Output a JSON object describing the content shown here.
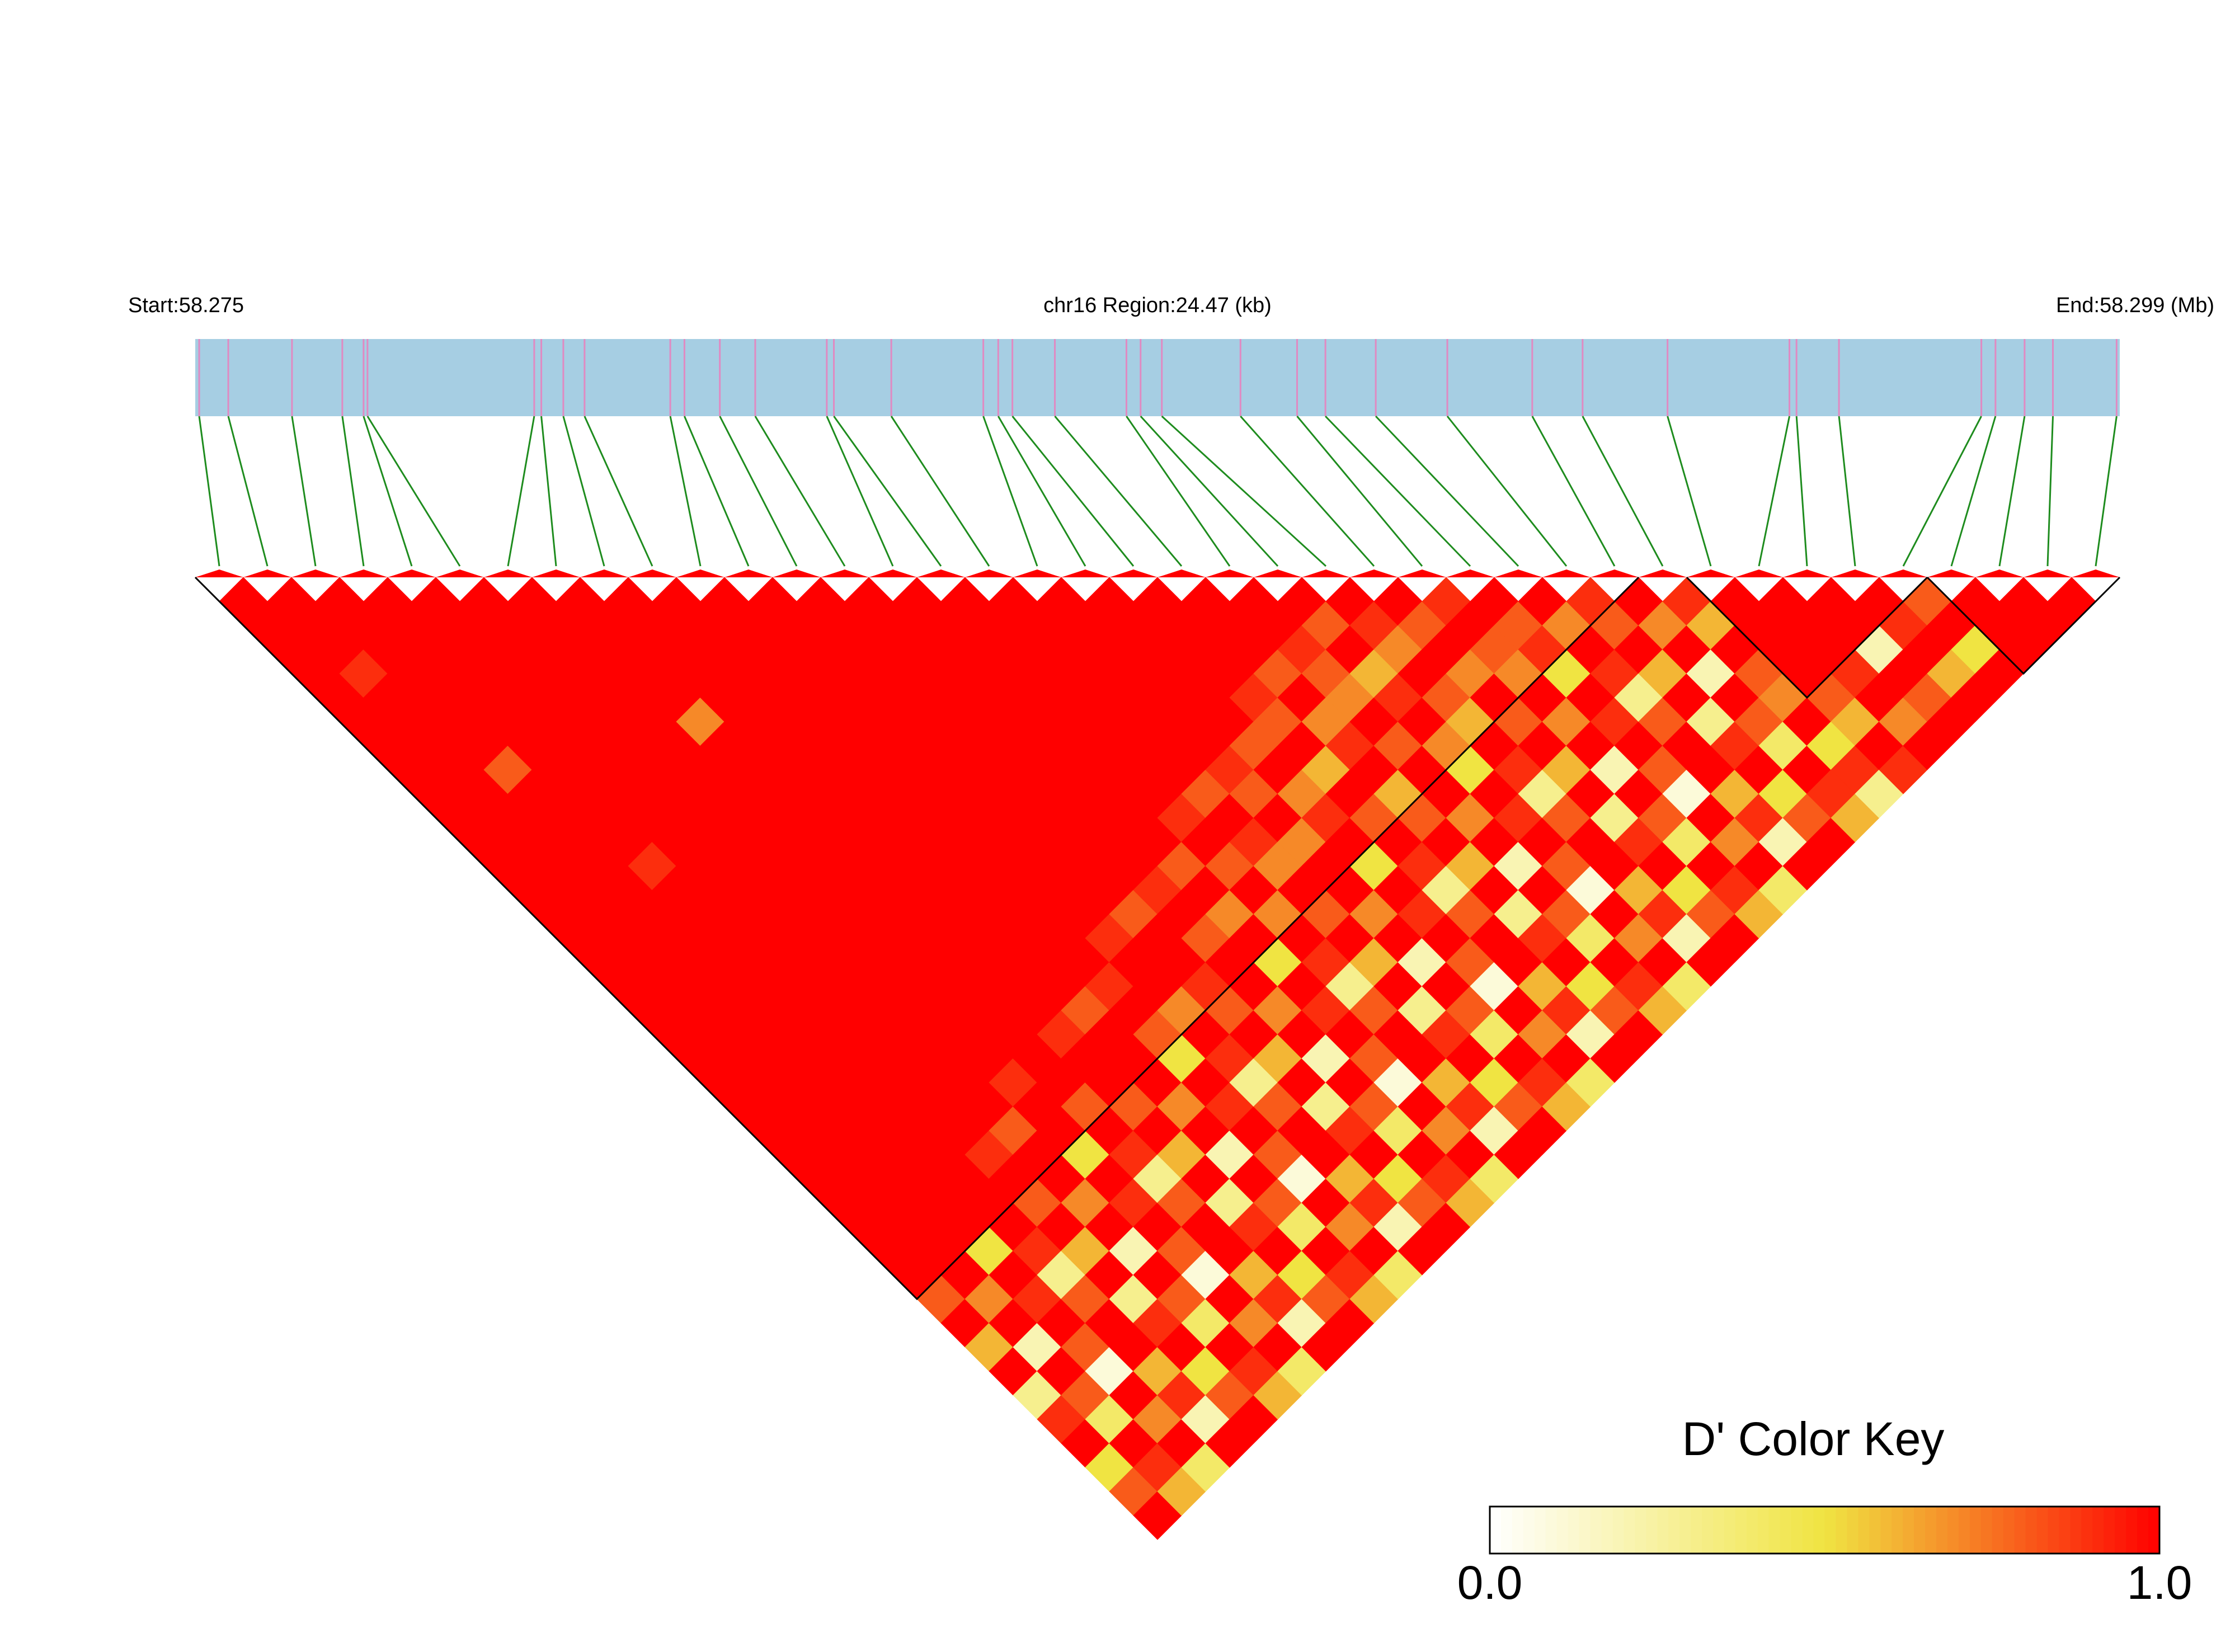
{
  "chart_data": {
    "type": "ld-heatmap",
    "start_label": "Start:58.275",
    "region_label": "chr16 Region:24.47 (kb)",
    "end_label": "End:58.299 (Mb)",
    "xlim": [
      58.275,
      58.29947
    ],
    "bar_color": "#a6cee3",
    "snp_color": "#e08ac2",
    "connector_color": "#1e8c1e",
    "positions": [
      58.27505,
      58.27542,
      58.27623,
      58.27687,
      58.27714,
      58.27719,
      58.27931,
      58.2794,
      58.27968,
      58.27995,
      58.28104,
      58.28122,
      58.28167,
      58.28212,
      58.28303,
      58.28312,
      58.28385,
      58.28502,
      58.28521,
      58.28539,
      58.28593,
      58.28684,
      58.28702,
      58.28729,
      58.28829,
      58.28901,
      58.28937,
      58.29001,
      58.29092,
      58.292,
      58.29264,
      58.29372,
      58.29527,
      58.29536,
      58.2959,
      58.29771,
      58.29789,
      58.29826,
      58.29862,
      58.29943
    ],
    "ld": [
      [
        1,
        1,
        1,
        1,
        1,
        1,
        1,
        1,
        1,
        1,
        1,
        1,
        1,
        1,
        1,
        1,
        1,
        1,
        1,
        1,
        1,
        1,
        1,
        1,
        1,
        1,
        1,
        1,
        1,
        0.8,
        1,
        0.6,
        1,
        0.3,
        0.9,
        1,
        0.5,
        0.8,
        1
      ],
      [
        1,
        1,
        1,
        0.9,
        1,
        1,
        1,
        1,
        1,
        1,
        1,
        1,
        1,
        1,
        1,
        1,
        1,
        1,
        1,
        1,
        1,
        1,
        1,
        1,
        1,
        1,
        1,
        1,
        1,
        0.7,
        1,
        0.2,
        1,
        0.8,
        0.4,
        1,
        0.9,
        0.6
      ],
      [
        1,
        1,
        1,
        1,
        1,
        1,
        1,
        0.8,
        1,
        1,
        1,
        1,
        1,
        1,
        1,
        1,
        1,
        1,
        1,
        1,
        1,
        1,
        1,
        1,
        1,
        1,
        1,
        0.5,
        1,
        0.9,
        1,
        0.8,
        0.1,
        1,
        0.7,
        1,
        0.4
      ],
      [
        1,
        1,
        1,
        1,
        1,
        1,
        1,
        1,
        1,
        1,
        1,
        0.9,
        1,
        1,
        1,
        1,
        1,
        1,
        1,
        1,
        1,
        1,
        1,
        1,
        1,
        1,
        1,
        0.9,
        0.3,
        0.8,
        1,
        1,
        0.6,
        0.9,
        0.2,
        1
      ],
      [
        1,
        1,
        1,
        1,
        1,
        1,
        1,
        1,
        1,
        1,
        1,
        1,
        1,
        1,
        1,
        1,
        1,
        1,
        1,
        1,
        1,
        1,
        1,
        0.9,
        1,
        0.8,
        1,
        0.6,
        1,
        0.3,
        0.9,
        1,
        0.5,
        0.8,
        1
      ],
      [
        1,
        1,
        1,
        1,
        1,
        1,
        1,
        1,
        1,
        1,
        1,
        1,
        1,
        1,
        1,
        1,
        1,
        1,
        1,
        1,
        1,
        1,
        0.8,
        1,
        1,
        0.7,
        1,
        0.2,
        1,
        0.8,
        0.4,
        1,
        0.9,
        0.6
      ],
      [
        1,
        1,
        1,
        1,
        1,
        1,
        1,
        1,
        1,
        1,
        1,
        1,
        1,
        1,
        1,
        1,
        1,
        1,
        1,
        1,
        0.9,
        1,
        1,
        0.5,
        1,
        0.9,
        1,
        0.8,
        0.1,
        1,
        0.7,
        1,
        0.4
      ],
      [
        1,
        1,
        1,
        1,
        1,
        0.7,
        1,
        1,
        1,
        1,
        1,
        1,
        1,
        1,
        1,
        1,
        1,
        1,
        1,
        1,
        1,
        0.8,
        1,
        0.9,
        0.3,
        0.8,
        1,
        1,
        0.6,
        0.9,
        0.2,
        1
      ],
      [
        1,
        1,
        1,
        1,
        1,
        1,
        1,
        1,
        1,
        1,
        1,
        1,
        1,
        1,
        1,
        1,
        1,
        1,
        0.9,
        1,
        1,
        0.8,
        1,
        0.6,
        1,
        0.3,
        0.9,
        1,
        0.5,
        0.8,
        1
      ],
      [
        1,
        1,
        1,
        1,
        1,
        1,
        1,
        1,
        1,
        1,
        1,
        1,
        1,
        1,
        1,
        1,
        1,
        0.8,
        1,
        1,
        1,
        0.7,
        1,
        0.2,
        1,
        0.8,
        0.4,
        1,
        0.9,
        0.6
      ],
      [
        1,
        1,
        1,
        1,
        1,
        1,
        1,
        1,
        1,
        1,
        1,
        1,
        1,
        1,
        1,
        1,
        0.9,
        1,
        0.8,
        0.5,
        1,
        0.9,
        1,
        0.8,
        0.1,
        1,
        0.7,
        1,
        0.4
      ],
      [
        1,
        1,
        1,
        1,
        1,
        1,
        1,
        1,
        1,
        1,
        1,
        1,
        1,
        1,
        0.9,
        1,
        1,
        0.7,
        1,
        0.9,
        0.3,
        0.8,
        1,
        1,
        0.6,
        0.9,
        0.2,
        1
      ],
      [
        1,
        1,
        1,
        1,
        1,
        1,
        1,
        1,
        1,
        1,
        1,
        1,
        1,
        0.8,
        1,
        1,
        0.9,
        0.8,
        1,
        0.6,
        1,
        0.3,
        0.9,
        1,
        0.5,
        0.8,
        1
      ],
      [
        1,
        1,
        1,
        1,
        1,
        1,
        1,
        1,
        1,
        1,
        1,
        1,
        0.9,
        1,
        0.8,
        1,
        1,
        0.7,
        1,
        0.2,
        1,
        0.8,
        0.4,
        1,
        0.9,
        0.6
      ],
      [
        1,
        1,
        1,
        1,
        1,
        1,
        1,
        1,
        1,
        1,
        1,
        0.8,
        1,
        0.7,
        1,
        0.5,
        1,
        0.9,
        1,
        0.8,
        0.1,
        1,
        0.7,
        1,
        0.4
      ],
      [
        1,
        1,
        1,
        1,
        1,
        1,
        1,
        1,
        1,
        0.9,
        1,
        0.8,
        1,
        0.7,
        1,
        0.9,
        0.3,
        0.8,
        1,
        1,
        0.6,
        0.9,
        0.2,
        1
      ],
      [
        1,
        1,
        1,
        1,
        1,
        1,
        1,
        1,
        0.8,
        1,
        0.9,
        0.7,
        1,
        0.8,
        1,
        0.6,
        1,
        0.3,
        0.9,
        1,
        0.5,
        0.8,
        1
      ],
      [
        1,
        1,
        1,
        1,
        1,
        1,
        1,
        0.9,
        0.8,
        1,
        0.7,
        1,
        1,
        0.7,
        1,
        0.2,
        1,
        0.8,
        0.4,
        1,
        0.9,
        0.6
      ],
      [
        1,
        1,
        1,
        1,
        1,
        1,
        0.8,
        1,
        0.7,
        0.9,
        1,
        0.5,
        1,
        0.9,
        1,
        0.8,
        0.1,
        1,
        0.7,
        1,
        0.4
      ],
      [
        1,
        1,
        1,
        1,
        0.9,
        0.8,
        1,
        0.6,
        1,
        0.8,
        1,
        0.9,
        0.3,
        0.8,
        1,
        1,
        0.6,
        0.9,
        0.2,
        1
      ],
      [
        1,
        1,
        1,
        0.8,
        1,
        0.7,
        0.9,
        1,
        0.6,
        0.8,
        1,
        0.6,
        1,
        0.3,
        0.9,
        1,
        0.5,
        0.8,
        1
      ],
      [
        1,
        1,
        0.9,
        0.8,
        0.7,
        1,
        0.8,
        1,
        1,
        0.7,
        1,
        0.2,
        1,
        0.8,
        0.4,
        1,
        0.9,
        0.6
      ],
      [
        1,
        0.8,
        1,
        0.6,
        0.9,
        1,
        0.7,
        0.5,
        1,
        0.9,
        1,
        0.8,
        0.1,
        1,
        0.7,
        1,
        0.4
      ],
      [
        1,
        0.9,
        0.7,
        1,
        0.8,
        0.6,
        1,
        0.9,
        0.3,
        0.8,
        1,
        1,
        0.6,
        0.9,
        0.2,
        1
      ],
      [
        1,
        0.8,
        1,
        0.7,
        1,
        0.8,
        1,
        0.6,
        1,
        0.3,
        0.9,
        1,
        0.5,
        0.8,
        1
      ],
      [
        0.9,
        1,
        0.8,
        0.7,
        1,
        0.7,
        1,
        0.2,
        1,
        0.8,
        0.4,
        1,
        0.9,
        0.6
      ],
      [
        1,
        0.8,
        0.9,
        0.5,
        1,
        0.9,
        1,
        0.8,
        0.1,
        1,
        0.7,
        1,
        0.4
      ],
      [
        1,
        0.7,
        1,
        0.9,
        0.3,
        0.8,
        1,
        1,
        0.6,
        0.9,
        0.2,
        1
      ],
      [
        0.9,
        0.8,
        1,
        0.6,
        1,
        0.3,
        0.9,
        1,
        0.5,
        0.8,
        1
      ],
      [
        1,
        0.7,
        1,
        0.2,
        1,
        0.8,
        0.4,
        1,
        0.9,
        0.6
      ],
      [
        0.9,
        0.6,
        1,
        0.8,
        0.7,
        1,
        0.5,
        0.9,
        0.3
      ],
      [
        1,
        1,
        1,
        1,
        0.8,
        0.6,
        1,
        0.9
      ],
      [
        1,
        1,
        1,
        0.9,
        1,
        0.7,
        1
      ],
      [
        1,
        1,
        0.2,
        1,
        0.8,
        1
      ],
      [
        1,
        0.9,
        1,
        0.6,
        1
      ],
      [
        0.8,
        1,
        0.5,
        1
      ],
      [
        1,
        1,
        1
      ],
      [
        1,
        1
      ],
      [
        1
      ]
    ],
    "blocks": [
      [
        0,
        29
      ],
      [
        31,
        35
      ],
      [
        36,
        39
      ]
    ],
    "color_key": {
      "title": "D' Color Key",
      "colors": [
        "#ffffff",
        "#f0e442",
        "#ff0000"
      ],
      "ticks": [
        {
          "value": 0,
          "label": "0.0"
        },
        {
          "value": 1,
          "label": "1.0"
        }
      ]
    }
  }
}
